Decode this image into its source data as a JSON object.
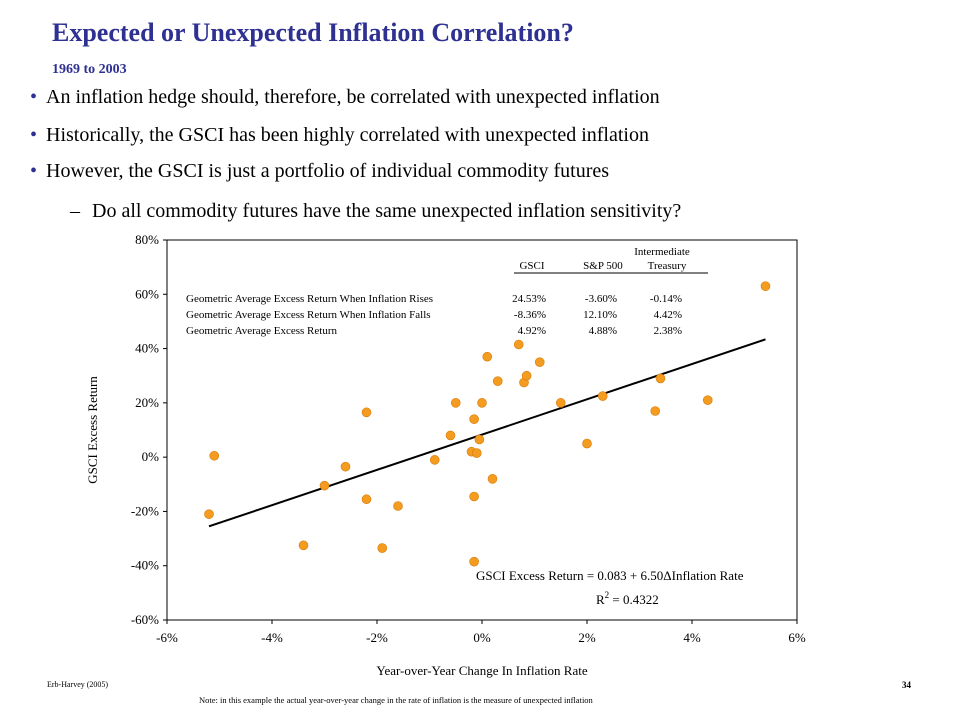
{
  "header": {
    "title": "Expected or Unexpected Inflation Correlation?",
    "subtitle": "1969 to 2003"
  },
  "bullets": [
    "An inflation hedge should, therefore, be correlated with unexpected inflation",
    "Historically, the GSCI has been highly correlated with unexpected inflation",
    "However, the GSCI is just a portfolio of individual commodity futures"
  ],
  "sub_bullet": "Do all commodity futures have the same unexpected inflation sensitivity?",
  "bullet_marker": "•",
  "dash_marker": "–",
  "footer": {
    "source": "Erb-Harvey (2005)",
    "page": "34",
    "note": "Note: in this example the actual year-over-year change in the rate of inflation is  the measure of unexpected inflation"
  },
  "colors": {
    "title": "#2e3092",
    "point": "#f39c1f",
    "point_stroke": "#d97b0a"
  },
  "table": {
    "header_top": "Intermediate",
    "columns": [
      "GSCI",
      "S&P 500",
      "Treasury"
    ],
    "rows": [
      {
        "label": "Geometric Average Excess Return When Inflation Rises",
        "values": [
          "24.53%",
          "-3.60%",
          "-0.14%"
        ]
      },
      {
        "label": "Geometric Average Excess Return When Inflation Falls",
        "values": [
          "-8.36%",
          "12.10%",
          "4.42%"
        ]
      },
      {
        "label": "Geometric Average Excess Return",
        "values": [
          "4.92%",
          "4.88%",
          "2.38%"
        ]
      }
    ]
  },
  "chart_data": {
    "type": "scatter",
    "xlabel": "Year-over-Year Change In Inflation Rate",
    "ylabel": "GSCI Excess Return",
    "xlim": [
      -0.06,
      0.06
    ],
    "ylim": [
      -0.6,
      0.8
    ],
    "xticks": [
      "-6%",
      "-4%",
      "-2%",
      "0%",
      "2%",
      "4%",
      "6%"
    ],
    "yticks": [
      "80%",
      "60%",
      "40%",
      "20%",
      "0%",
      "-20%",
      "-40%",
      "-60%"
    ],
    "equation": "GSCI Excess Return = 0.083 + 6.50ΔInflation Rate",
    "r_squared_label": "R",
    "r_squared_exp": "2",
    "r_squared_value": " = 0.4322",
    "regression": {
      "intercept": 0.083,
      "slope": 6.5,
      "x_range": [
        -0.052,
        0.054
      ]
    },
    "points": [
      {
        "x": -0.052,
        "y": -0.21
      },
      {
        "x": -0.051,
        "y": 0.005
      },
      {
        "x": -0.034,
        "y": -0.325
      },
      {
        "x": -0.03,
        "y": -0.105
      },
      {
        "x": -0.026,
        "y": -0.035
      },
      {
        "x": -0.022,
        "y": 0.165
      },
      {
        "x": -0.022,
        "y": -0.155
      },
      {
        "x": -0.019,
        "y": -0.335
      },
      {
        "x": -0.016,
        "y": -0.18
      },
      {
        "x": -0.009,
        "y": -0.01
      },
      {
        "x": -0.006,
        "y": 0.08
      },
      {
        "x": -0.005,
        "y": 0.2
      },
      {
        "x": -0.002,
        "y": 0.02
      },
      {
        "x": -0.0015,
        "y": 0.14
      },
      {
        "x": -0.0015,
        "y": -0.145
      },
      {
        "x": -0.0015,
        "y": -0.385
      },
      {
        "x": -0.001,
        "y": 0.015
      },
      {
        "x": -0.0005,
        "y": 0.065
      },
      {
        "x": 0.0,
        "y": 0.2
      },
      {
        "x": 0.001,
        "y": 0.37
      },
      {
        "x": 0.002,
        "y": -0.08
      },
      {
        "x": 0.003,
        "y": 0.28
      },
      {
        "x": 0.007,
        "y": 0.415
      },
      {
        "x": 0.008,
        "y": 0.275
      },
      {
        "x": 0.0085,
        "y": 0.3
      },
      {
        "x": 0.011,
        "y": 0.35
      },
      {
        "x": 0.015,
        "y": 0.2
      },
      {
        "x": 0.02,
        "y": 0.05
      },
      {
        "x": 0.023,
        "y": 0.225
      },
      {
        "x": 0.033,
        "y": 0.17
      },
      {
        "x": 0.034,
        "y": 0.29
      },
      {
        "x": 0.043,
        "y": 0.21
      },
      {
        "x": 0.054,
        "y": 0.63
      }
    ]
  }
}
